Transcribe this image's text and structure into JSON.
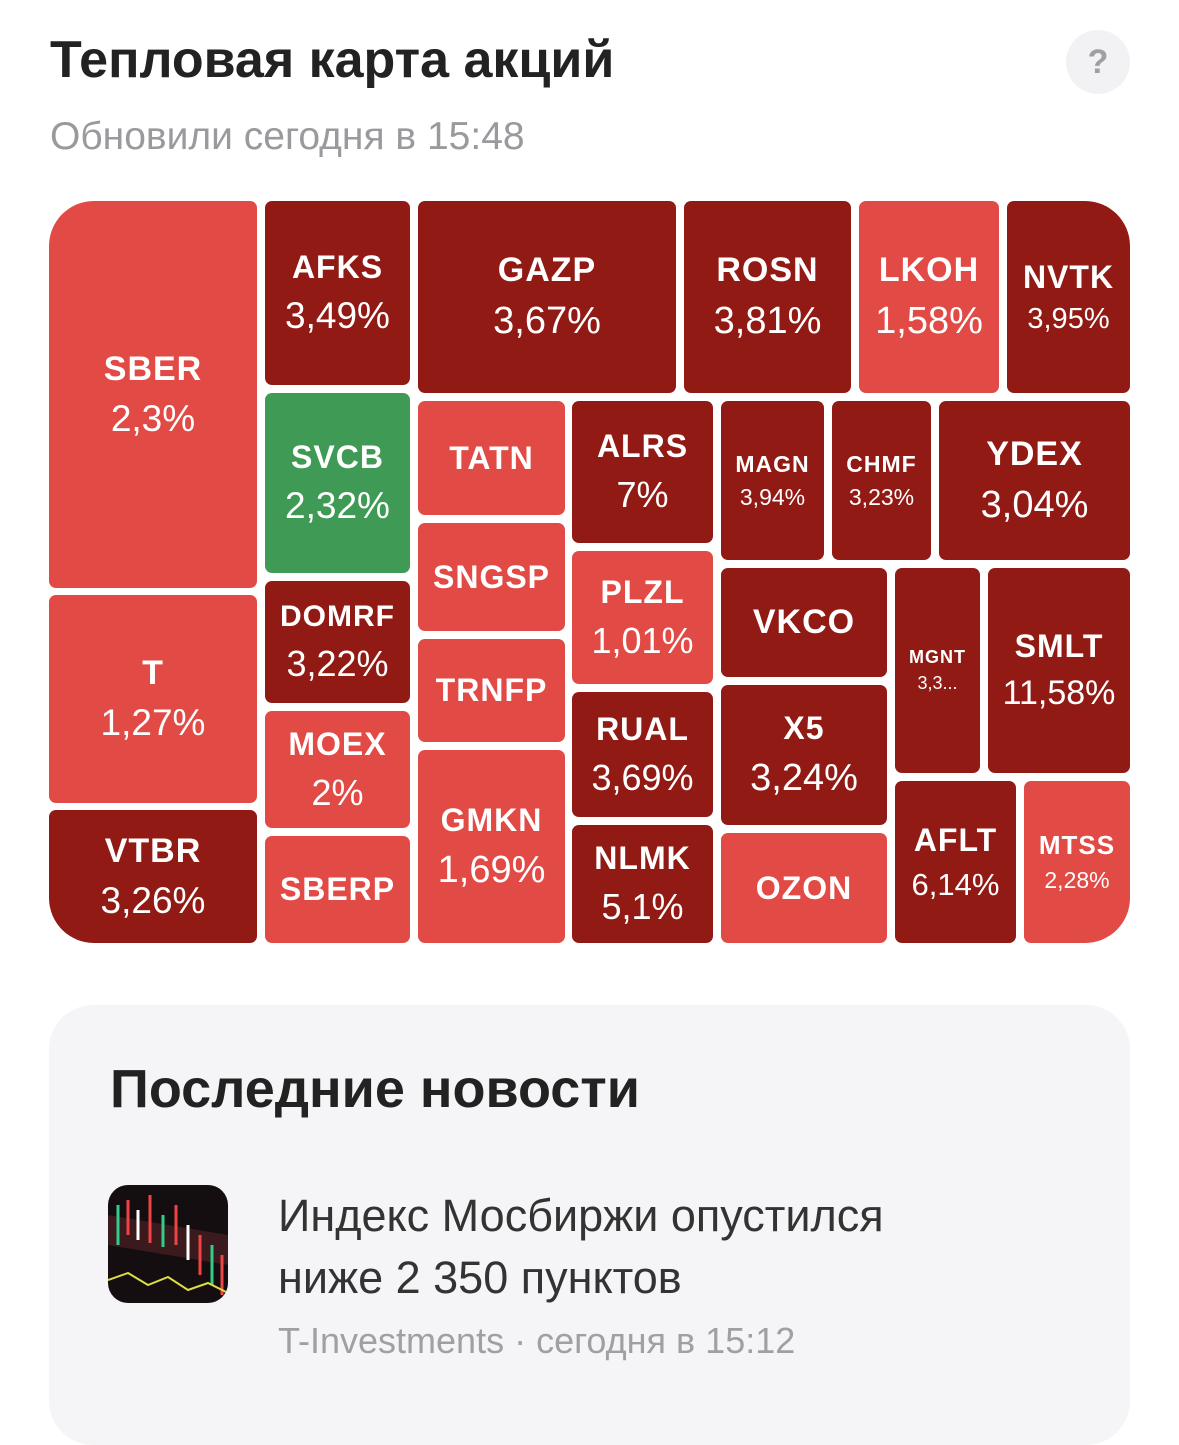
{
  "header": {
    "title": "Тепловая карта акций",
    "subtitle": "Обновили сегодня в 15:48",
    "help": "?"
  },
  "heatmap": {
    "tiles": [
      {
        "ticker": "SBER",
        "change": "2,3%",
        "color": "#e24a45"
      },
      {
        "ticker": "T",
        "change": "1,27%",
        "color": "#e24a45"
      },
      {
        "ticker": "VTBR",
        "change": "3,26%",
        "color": "#921a14"
      },
      {
        "ticker": "AFKS",
        "change": "3,49%",
        "color": "#921a14"
      },
      {
        "ticker": "SVCB",
        "change": "2,32%",
        "color": "#3f9a55"
      },
      {
        "ticker": "DOMRF",
        "change": "3,22%",
        "color": "#921a14"
      },
      {
        "ticker": "MOEX",
        "change": "2%",
        "color": "#e24a45"
      },
      {
        "ticker": "SBERP",
        "color": "#e24a45"
      },
      {
        "ticker": "GAZP",
        "change": "3,67%",
        "color": "#921a14"
      },
      {
        "ticker": "TATN",
        "color": "#e24a45"
      },
      {
        "ticker": "SNGSP",
        "color": "#e24a45"
      },
      {
        "ticker": "TRNFP",
        "color": "#e24a45"
      },
      {
        "ticker": "GMKN",
        "change": "1,69%",
        "color": "#e24a45"
      },
      {
        "ticker": "ROSN",
        "change": "3,81%",
        "color": "#921a14"
      },
      {
        "ticker": "ALRS",
        "change": "7%",
        "color": "#921a14"
      },
      {
        "ticker": "PLZL",
        "change": "1,01%",
        "color": "#e24a45"
      },
      {
        "ticker": "RUAL",
        "change": "3,69%",
        "color": "#921a14"
      },
      {
        "ticker": "NLMK",
        "change": "5,1%",
        "color": "#921a14"
      },
      {
        "ticker": "LKOH",
        "change": "1,58%",
        "color": "#e24a45"
      },
      {
        "ticker": "NVTK",
        "change": "3,95%",
        "color": "#921a14"
      },
      {
        "ticker": "MAGN",
        "change": "3,94%",
        "color": "#921a14"
      },
      {
        "ticker": "CHMF",
        "change": "3,23%",
        "color": "#921a14"
      },
      {
        "ticker": "YDEX",
        "change": "3,04%",
        "color": "#921a14"
      },
      {
        "ticker": "VKCO",
        "color": "#921a14"
      },
      {
        "ticker": "X5",
        "change": "3,24%",
        "color": "#921a14"
      },
      {
        "ticker": "OZON",
        "color": "#e24a45"
      },
      {
        "ticker": "MGNT",
        "change": "3,3...",
        "color": "#921a14"
      },
      {
        "ticker": "SMLT",
        "change": "11,58%",
        "color": "#921a14"
      },
      {
        "ticker": "AFLT",
        "change": "6,14%",
        "color": "#921a14"
      },
      {
        "ticker": "MTSS",
        "change": "2,28%",
        "color": "#e24a45"
      }
    ]
  },
  "news": {
    "title": "Последние новости",
    "items": [
      {
        "headline_lines": [
          "Индекс Мосбиржи опустился",
          "ниже 2 350 пунктов"
        ],
        "meta": "T-Investments · сегодня в 15:12"
      }
    ]
  }
}
